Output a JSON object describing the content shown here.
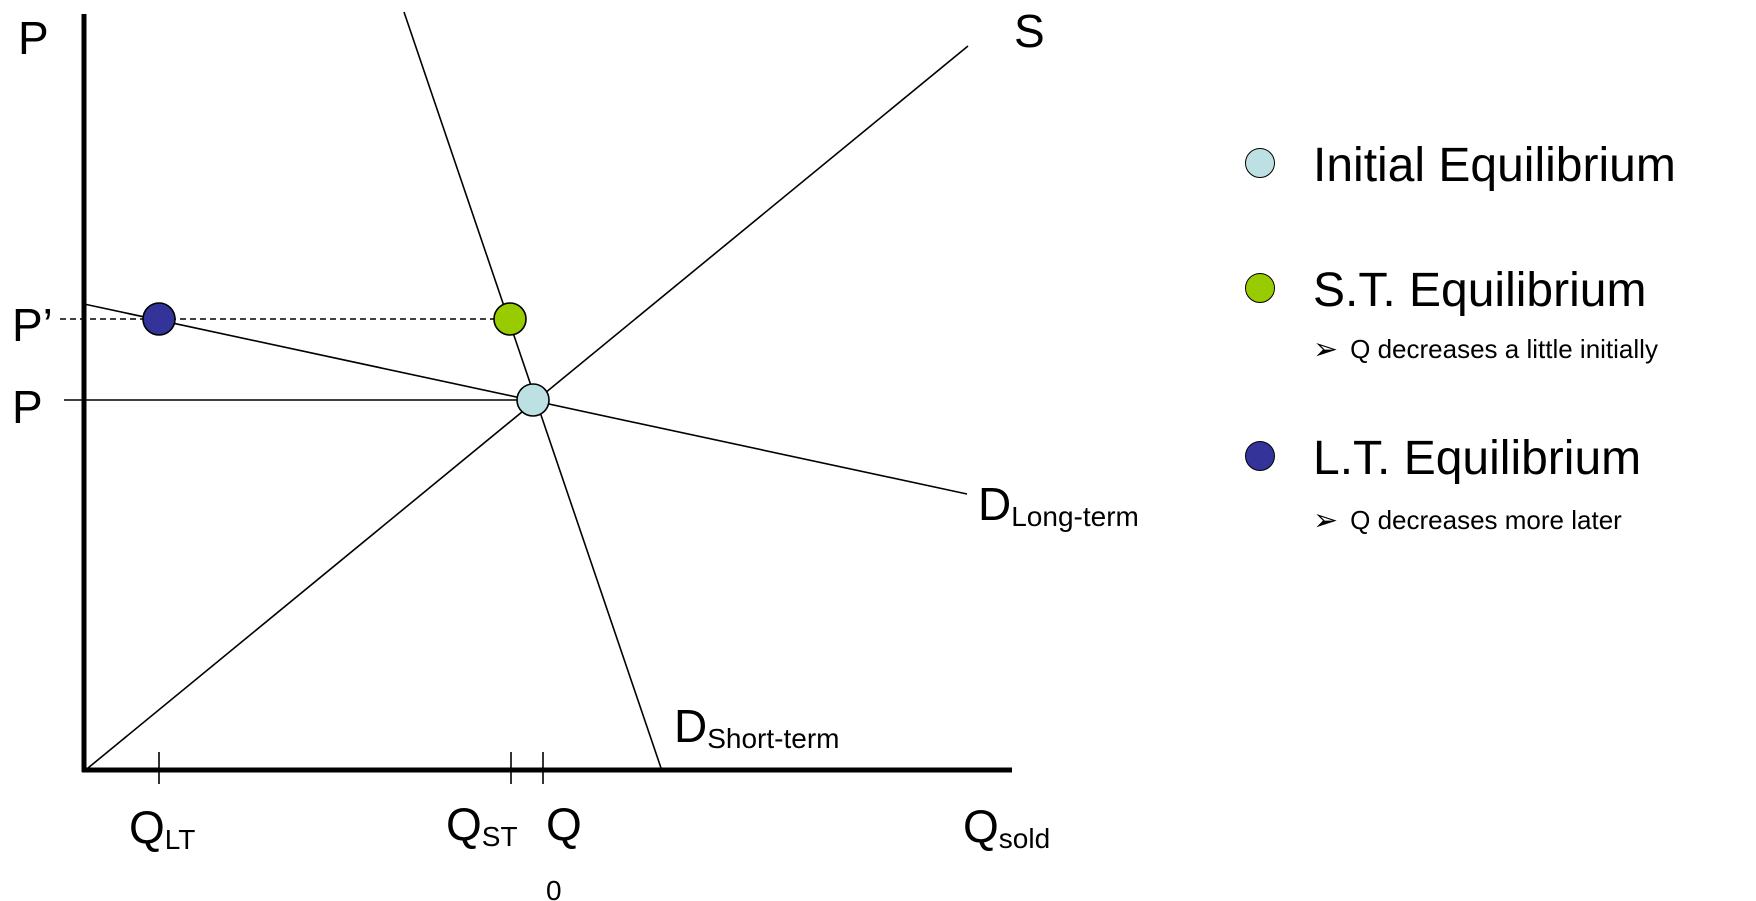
{
  "axes": {
    "y_label": "P",
    "x_label_main": "Q",
    "x_label_sub": "sold"
  },
  "price_labels": {
    "p_prime": "P’",
    "p": "P"
  },
  "quantity_labels": {
    "q_lt_main": "Q",
    "q_lt_sub": "LT",
    "q_st_main": "Q",
    "q_st_sub": "ST",
    "q0_main": "Q",
    "q0_sub": "0"
  },
  "curves": {
    "supply": "S",
    "d_long_main": "D",
    "d_long_sub": "Long-term",
    "d_short_main": "D",
    "d_short_sub": "Short-term"
  },
  "legend": {
    "initial": {
      "label": "Initial Equilibrium",
      "color": "#bde0e2"
    },
    "short_term": {
      "label": "S.T. Equilibrium",
      "note": "Q decreases a little initially",
      "color": "#99cc00"
    },
    "long_term": {
      "label": "L.T. Equilibrium",
      "note": "Q decreases more later",
      "color": "#333399"
    }
  },
  "icons": {
    "bullet": "arrowhead-bullet-icon"
  }
}
